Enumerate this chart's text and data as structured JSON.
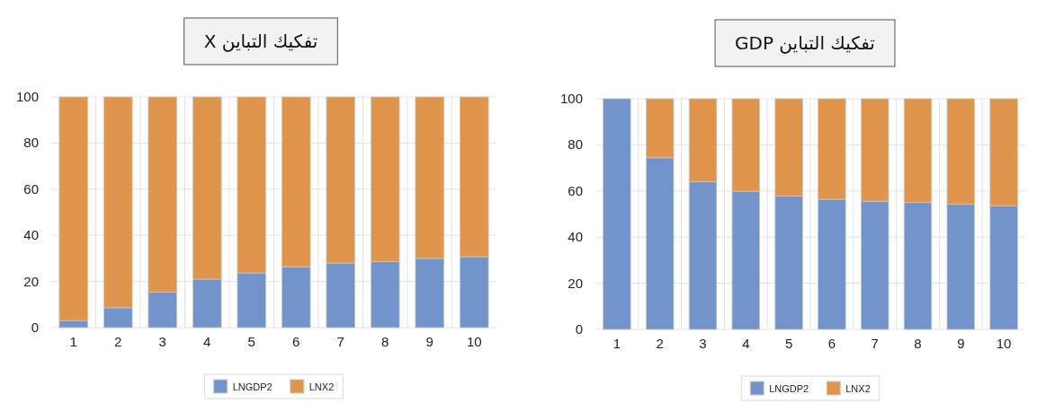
{
  "chart_data": [
    {
      "type": "bar",
      "title": "تفكيك التباين X",
      "stacked": true,
      "categories": [
        "1",
        "2",
        "3",
        "4",
        "5",
        "6",
        "7",
        "8",
        "9",
        "10"
      ],
      "series": [
        {
          "name": "LNGDP2",
          "color": "#7294cb",
          "values": [
            3.1,
            8.6,
            15.4,
            21,
            23.7,
            26.4,
            28,
            28.6,
            30,
            30.7
          ]
        },
        {
          "name": "LNX2",
          "color": "#e0954c",
          "values": [
            96.9,
            91.4,
            84.6,
            79,
            76.3,
            73.6,
            72,
            71.4,
            70,
            69.3
          ]
        }
      ],
      "ylim": [
        0,
        100
      ],
      "yticks": [
        0,
        20,
        40,
        60,
        80,
        100
      ],
      "grid": true,
      "legend": "bottom"
    },
    {
      "type": "bar",
      "title": "تفكيك التباين GDP",
      "stacked": true,
      "categories": [
        "1",
        "2",
        "3",
        "4",
        "5",
        "6",
        "7",
        "8",
        "9",
        "10"
      ],
      "series": [
        {
          "name": "LNGDP2",
          "color": "#7294cb",
          "values": [
            100,
            74.4,
            64,
            59.9,
            57.8,
            56.4,
            55.6,
            55,
            54.3,
            53.6
          ]
        },
        {
          "name": "LNX2",
          "color": "#e0954c",
          "values": [
            0,
            25.6,
            36,
            40.1,
            42.2,
            43.6,
            44.4,
            45,
            45.7,
            46.4
          ]
        }
      ],
      "ylim": [
        0,
        100
      ],
      "yticks": [
        0,
        20,
        40,
        60,
        80,
        100
      ],
      "grid": true,
      "legend": "bottom"
    }
  ]
}
